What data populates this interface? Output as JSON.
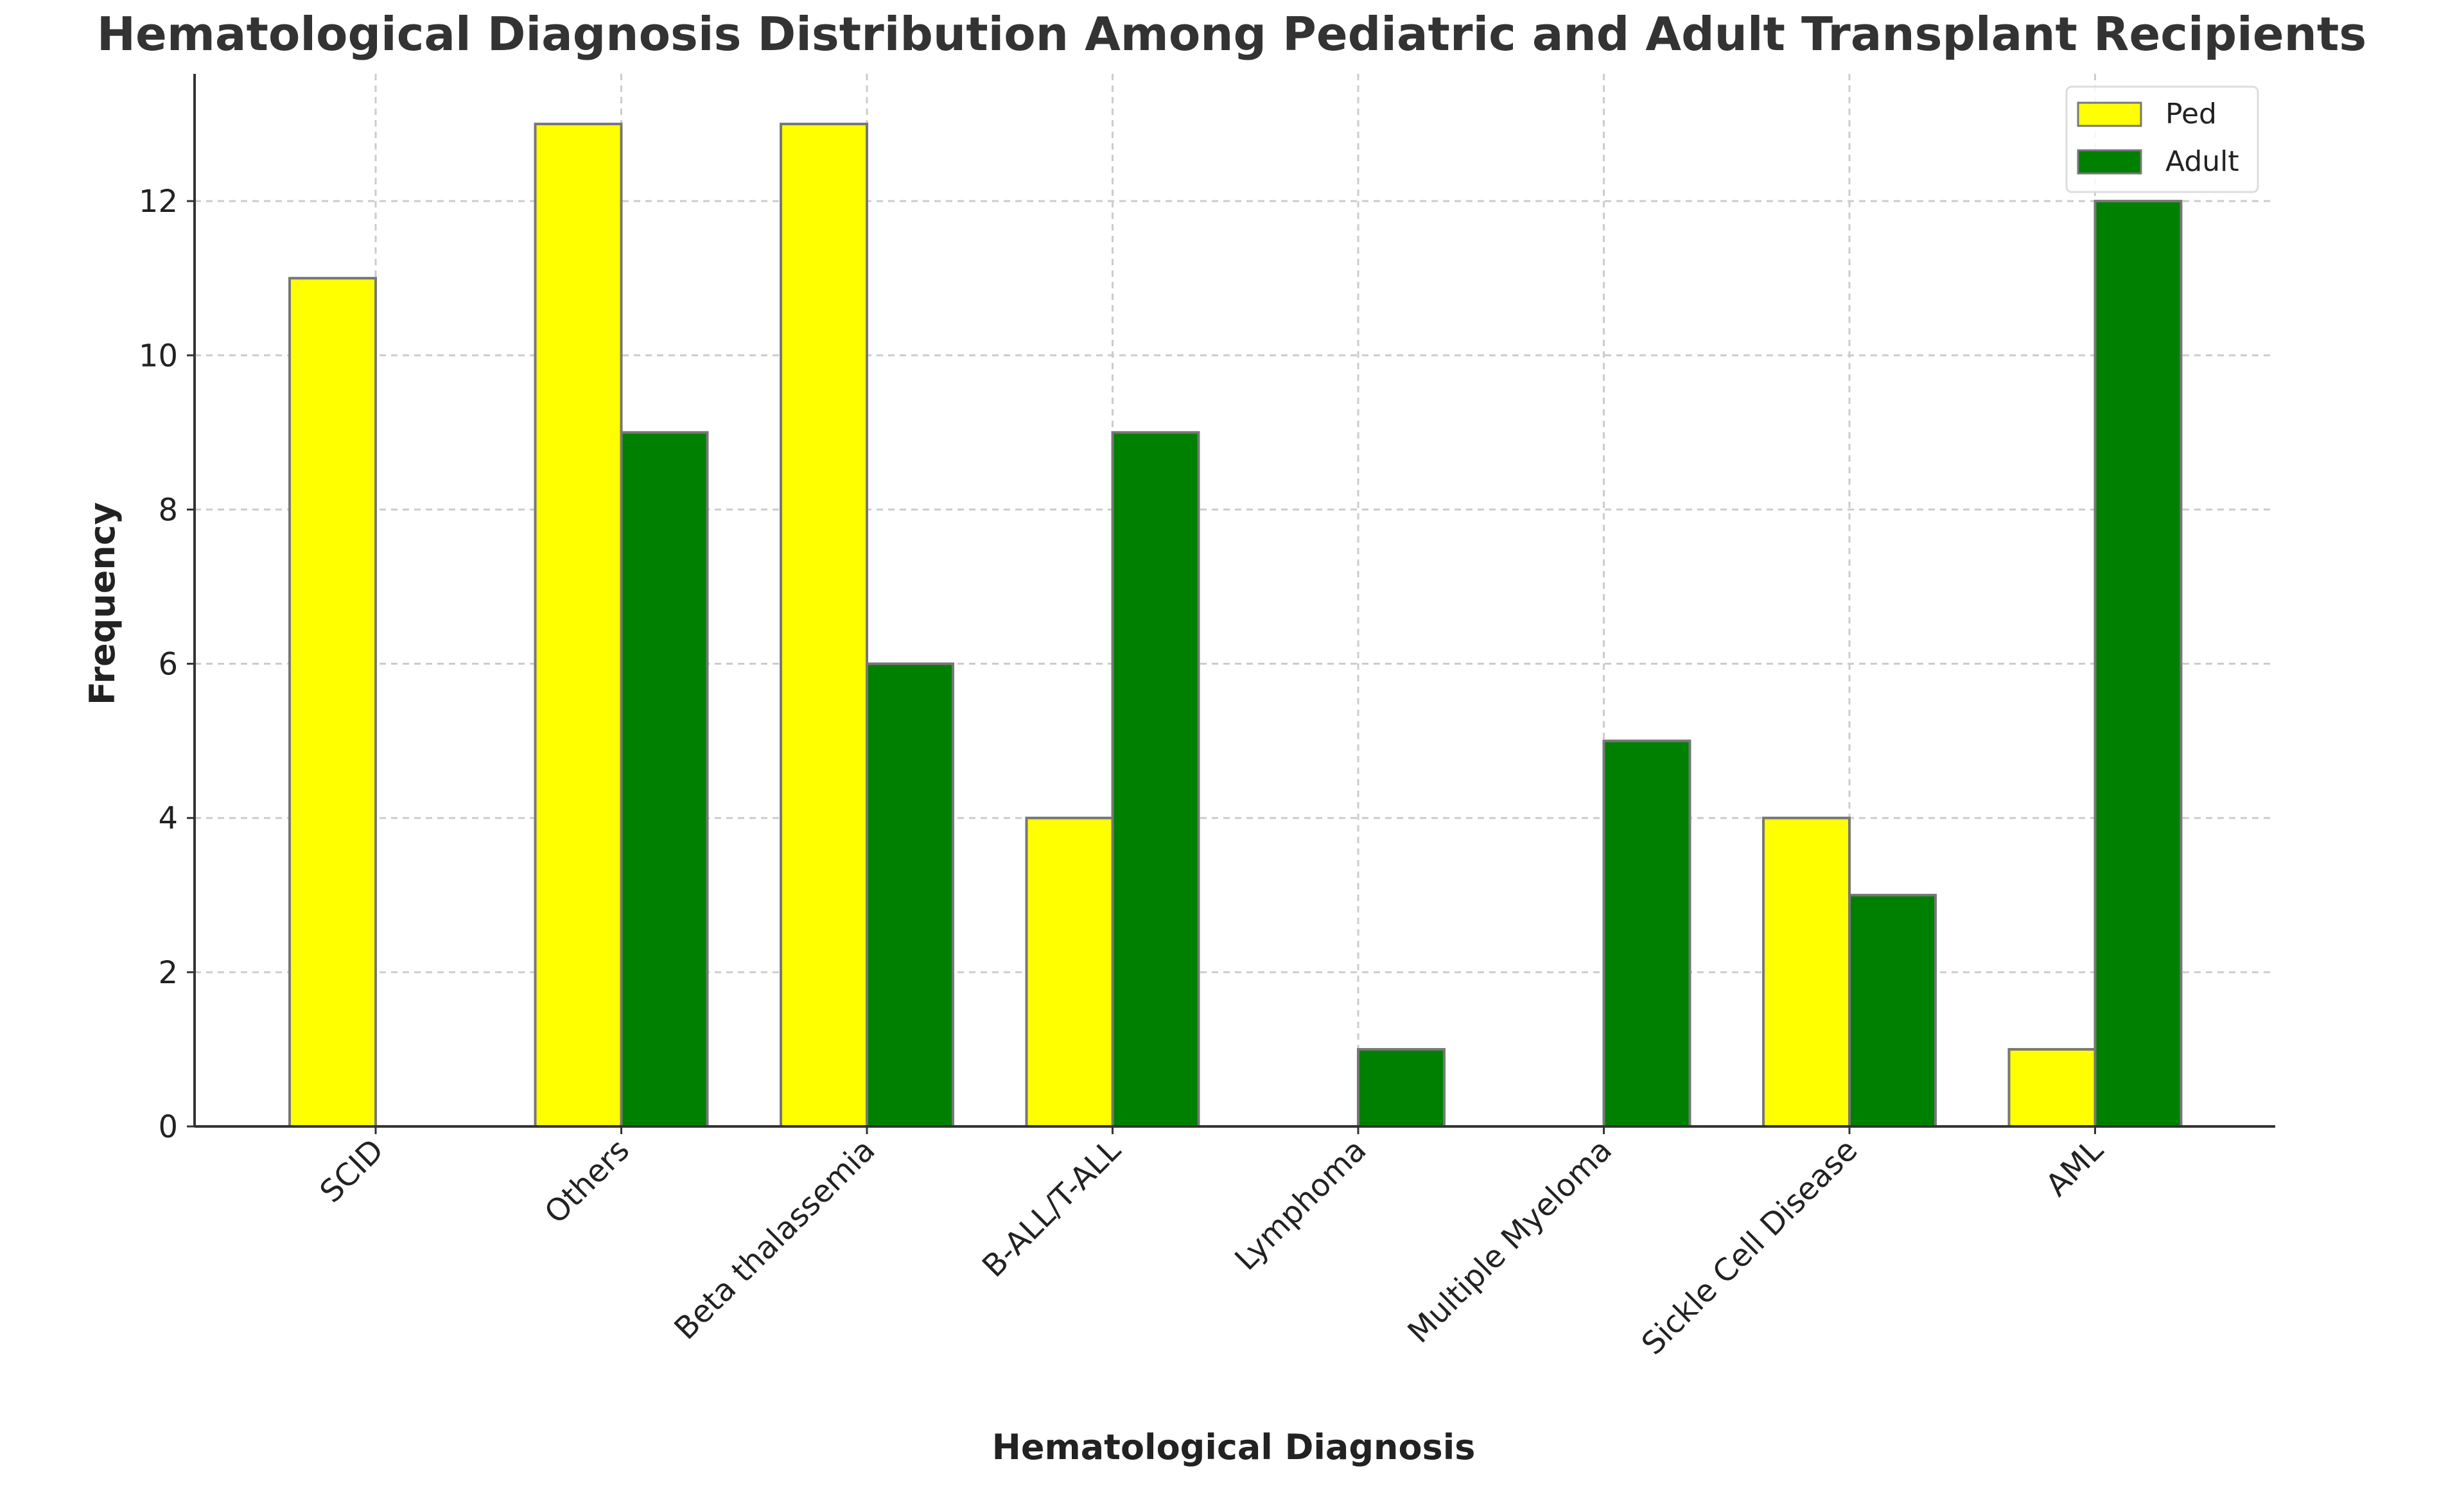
{
  "chart_data": {
    "type": "bar",
    "title": "Hematological Diagnosis Distribution Among Pediatric and Adult Transplant Recipients",
    "xlabel": "Hematological Diagnosis",
    "ylabel": "Frequency",
    "categories": [
      "SCID",
      "Others",
      "Beta thalassemia",
      "B-ALL/T-ALL",
      "Lymphoma",
      "Multiple Myeloma",
      "Sickle Cell Disease",
      "AML"
    ],
    "series": [
      {
        "name": "Ped",
        "color": "#ffff00",
        "values": [
          11,
          13,
          13,
          4,
          0,
          0,
          4,
          1
        ]
      },
      {
        "name": "Adult",
        "color": "#008000",
        "values": [
          0,
          9,
          6,
          9,
          1,
          5,
          3,
          12
        ]
      }
    ],
    "yticks": [
      0,
      2,
      4,
      6,
      8,
      10,
      12
    ],
    "ylim": [
      0,
      13.65
    ],
    "grid": true,
    "legend_position": "top-right"
  }
}
